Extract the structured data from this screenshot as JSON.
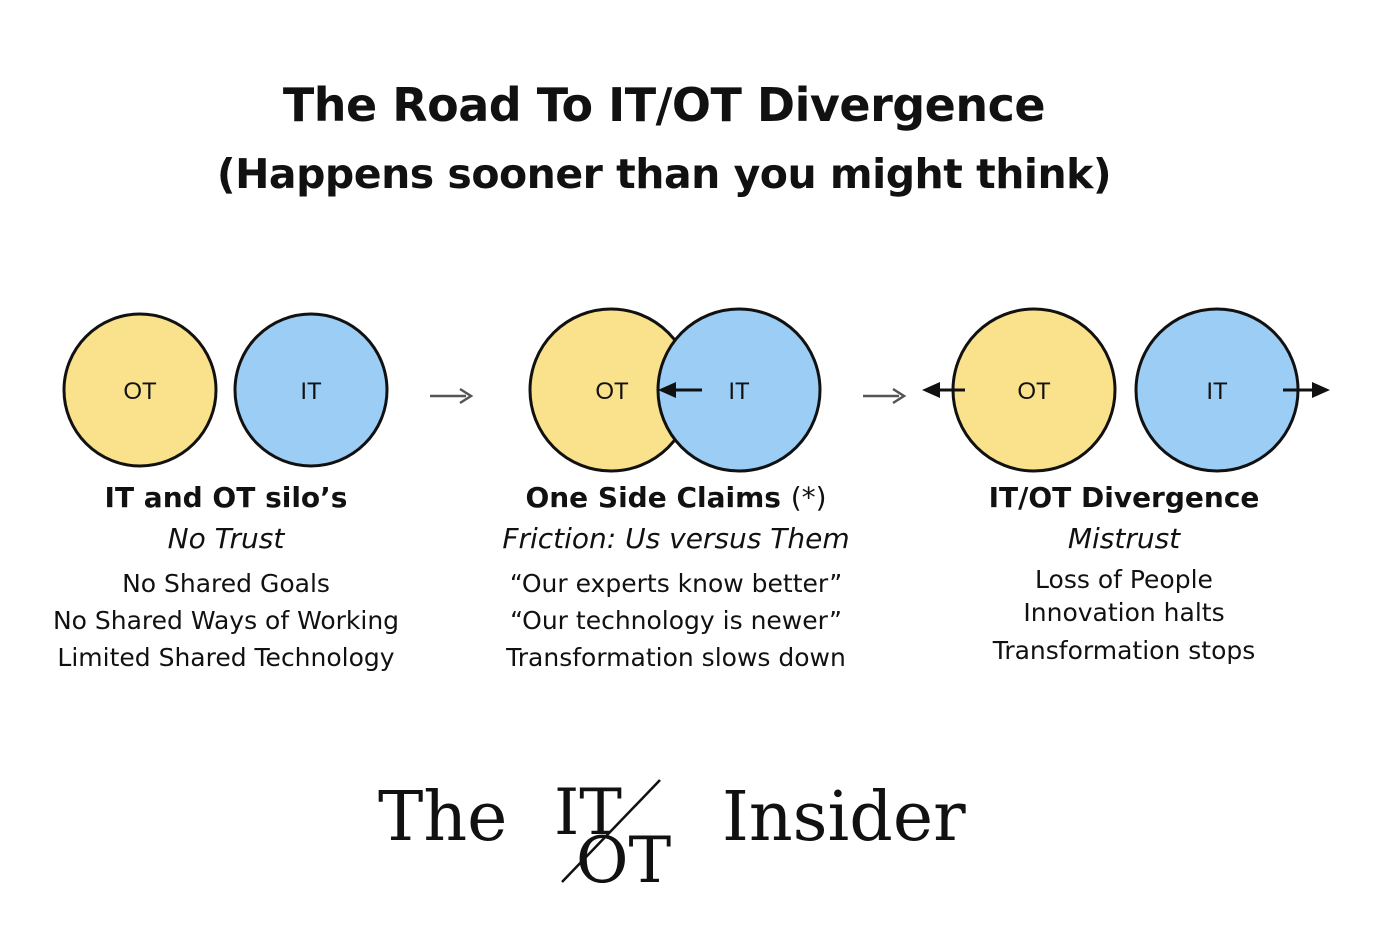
{
  "title": "The Road To IT/OT Divergence",
  "subtitle": "(Happens sooner than you might think)",
  "colors": {
    "ot": "#fae28c",
    "it": "#9bcdf5",
    "outline": "#111111"
  },
  "stages": [
    {
      "ot_label": "OT",
      "it_label": "IT",
      "heading": "IT and OT silo’s",
      "tagline": "No Trust",
      "points": [
        "No Shared Goals",
        "No Shared Ways of Working",
        "Limited Shared Technology"
      ]
    },
    {
      "ot_label": "OT",
      "it_label": "IT",
      "heading": "One Side Claims",
      "heading_note": "(*)",
      "tagline": "Friction: Us versus Them",
      "points": [
        "“Our experts know better”",
        "“Our technology is newer”",
        "Transformation slows down"
      ]
    },
    {
      "ot_label": "OT",
      "it_label": "IT",
      "heading": "IT/OT Divergence",
      "tagline": "Mistrust",
      "points": [
        "Loss of People",
        "Innovation halts",
        "Transformation stops"
      ]
    }
  ],
  "transition_arrow": "→",
  "logo": {
    "prefix": "The",
    "mark_top": "IT",
    "mark_bottom": "OT",
    "suffix": "Insider"
  }
}
